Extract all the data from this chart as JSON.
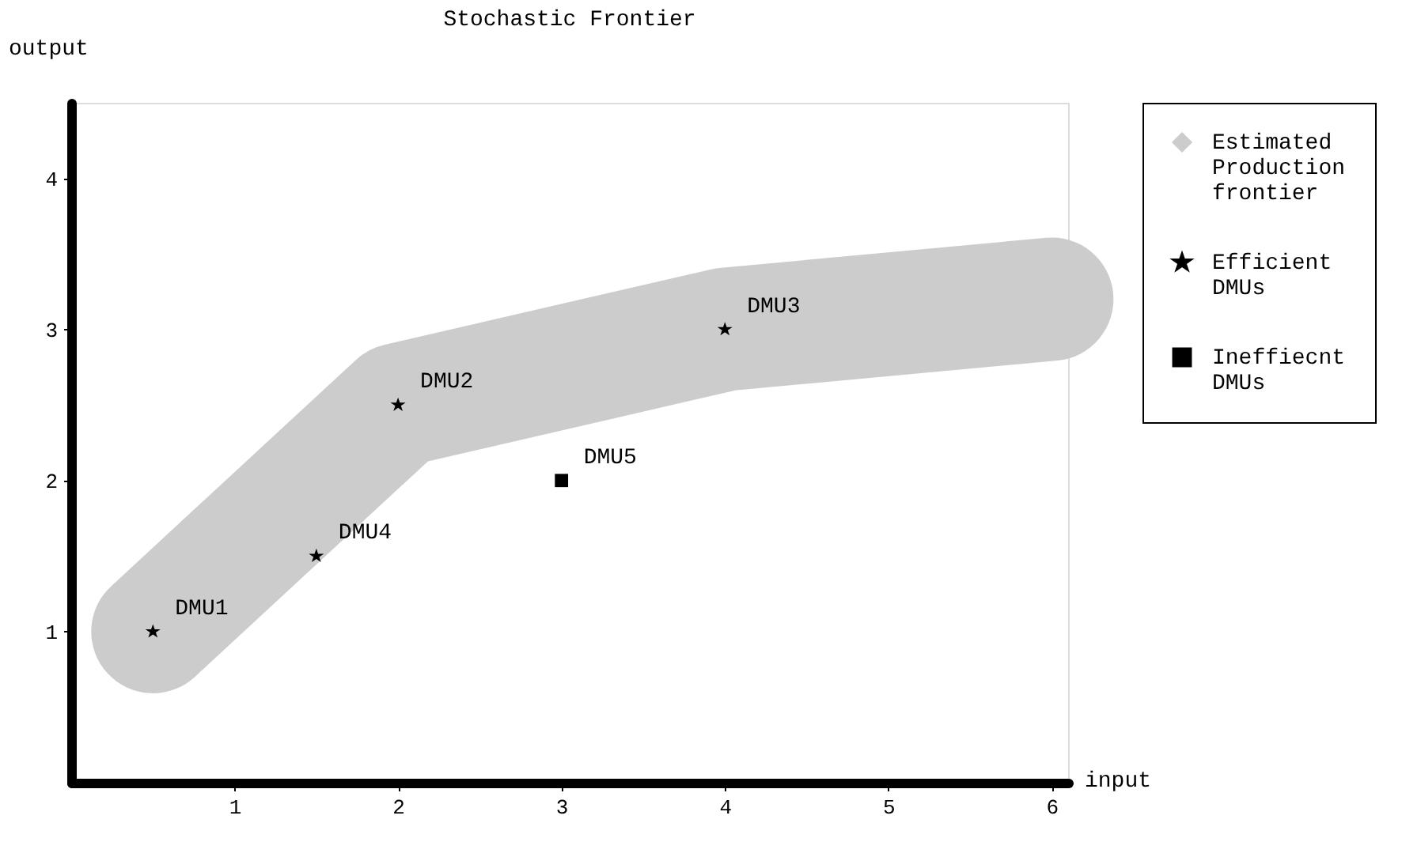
{
  "chart_data": {
    "type": "scatter",
    "title": "Stochastic Frontier",
    "xlabel": "input",
    "ylabel": "output",
    "xlim": [
      0,
      6.1
    ],
    "ylim": [
      0,
      4.5
    ],
    "xticks": [
      1,
      2,
      3,
      4,
      5,
      6
    ],
    "yticks": [
      1,
      2,
      3,
      4
    ],
    "grid": false,
    "legend": "right",
    "series": [
      {
        "name": "Estimated Production frontier",
        "type": "line",
        "color": "#cccccc",
        "marker": "diamond",
        "x": [
          0.5,
          2,
          4,
          6
        ],
        "values": [
          1,
          2.5,
          3,
          3.2
        ]
      },
      {
        "name": "Efficient DMUs",
        "color": "#000000",
        "marker": "star",
        "x": [
          0.5,
          1.5,
          2,
          4
        ],
        "values": [
          1,
          1.5,
          2.5,
          3
        ]
      },
      {
        "name": "Ineffiecnt DMUs",
        "color": "#000000",
        "marker": "square",
        "x": [
          3
        ],
        "values": [
          2
        ]
      }
    ],
    "annotations": [
      {
        "text": "DMU1",
        "x": 0.5,
        "y": 1
      },
      {
        "text": "DMU4",
        "x": 1.5,
        "y": 1.5
      },
      {
        "text": "DMU2",
        "x": 2,
        "y": 2.5
      },
      {
        "text": "DMU5",
        "x": 3,
        "y": 2
      },
      {
        "text": "DMU3",
        "x": 4,
        "y": 3
      }
    ]
  }
}
